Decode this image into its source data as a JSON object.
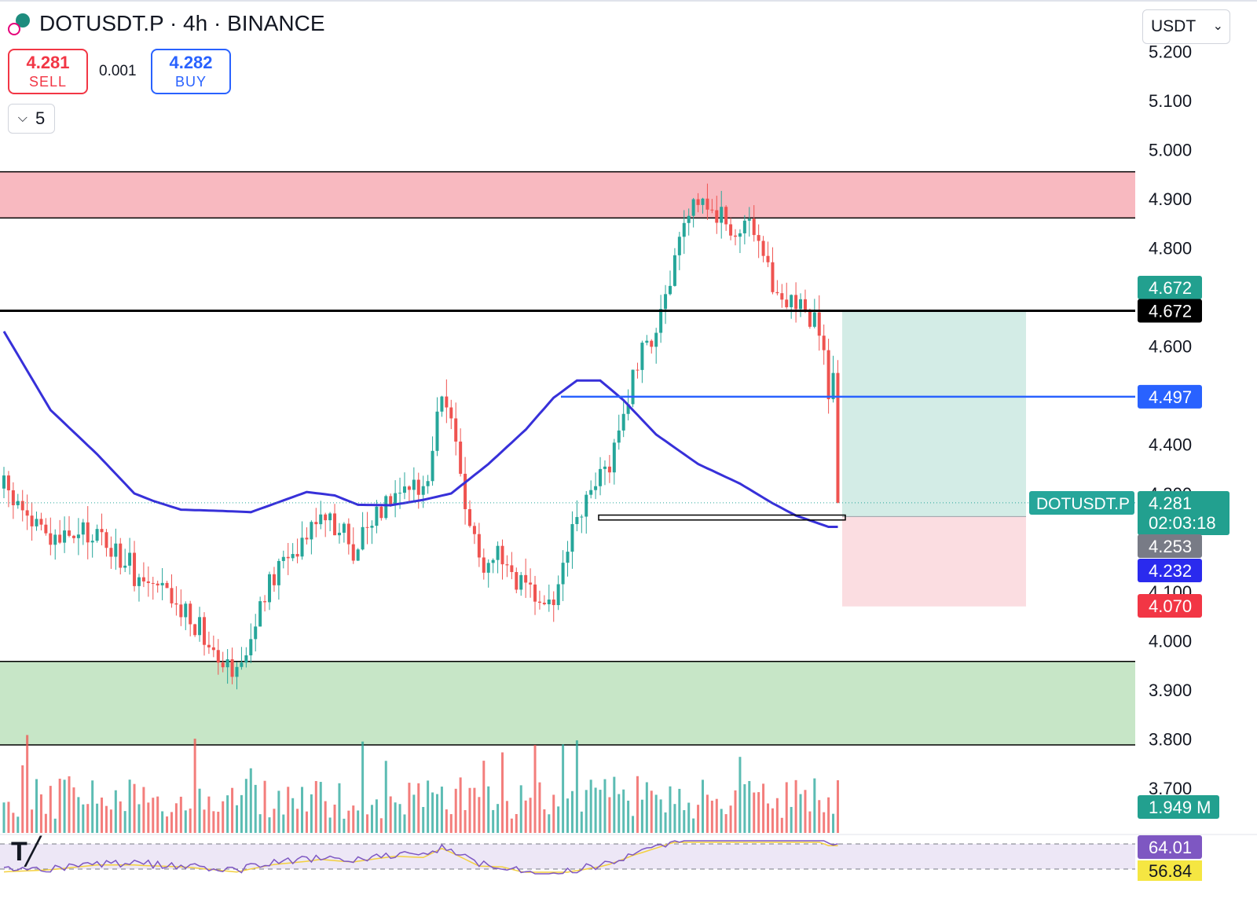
{
  "header": {
    "symbol_line": "DOTUSDT.P · 4h · BINANCE",
    "sell_price": "4.281",
    "sell_label": "SELL",
    "spread": "0.001",
    "buy_price": "4.282",
    "buy_label": "BUY",
    "quantity": "5",
    "currency": "USDT"
  },
  "colors": {
    "up": "#26a69a",
    "down": "#ef5350",
    "ma": "#3730d9",
    "resistance_zone": "#f8b9c0",
    "support_zone": "#c7e6c7",
    "target_zone": "#d3ece6",
    "stop_zone": "#fbdde1"
  },
  "chart_data": {
    "type": "candlestick",
    "symbol": "DOTUSDT.P",
    "interval": "4h",
    "exchange": "BINANCE",
    "y_axis": {
      "range": [
        3.66,
        5.23
      ],
      "ticks": [
        "5.200",
        "5.100",
        "5.000",
        "4.900",
        "4.800",
        "4.600",
        "4.400",
        "4.300",
        "4.100",
        "4.000",
        "3.900",
        "3.800",
        "3.700"
      ]
    },
    "candle_count": 180,
    "price_path": [
      [
        0,
        4.31
      ],
      [
        10,
        4.2
      ],
      [
        20,
        4.22
      ],
      [
        30,
        4.12
      ],
      [
        40,
        4.05
      ],
      [
        50,
        3.94
      ],
      [
        58,
        4.13
      ],
      [
        68,
        4.27
      ],
      [
        75,
        4.19
      ],
      [
        84,
        4.32
      ],
      [
        90,
        4.3
      ],
      [
        94,
        4.52
      ],
      [
        102,
        4.16
      ],
      [
        107,
        4.18
      ],
      [
        112,
        4.09
      ],
      [
        118,
        4.08
      ],
      [
        122,
        4.22
      ],
      [
        130,
        4.37
      ],
      [
        135,
        4.53
      ],
      [
        140,
        4.65
      ],
      [
        149,
        4.91
      ],
      [
        155,
        4.85
      ],
      [
        160,
        4.83
      ],
      [
        165,
        4.72
      ],
      [
        170,
        4.69
      ],
      [
        174,
        4.66
      ],
      [
        177,
        4.52
      ]
    ],
    "moving_average": [
      [
        0,
        4.63
      ],
      [
        5,
        4.55
      ],
      [
        10,
        4.47
      ],
      [
        20,
        4.38
      ],
      [
        28,
        4.3
      ],
      [
        32,
        4.285
      ],
      [
        38,
        4.267
      ],
      [
        45,
        4.265
      ],
      [
        53,
        4.262
      ],
      [
        58,
        4.279
      ],
      [
        65,
        4.303
      ],
      [
        71,
        4.296
      ],
      [
        76,
        4.277
      ],
      [
        83,
        4.276
      ],
      [
        90,
        4.287
      ],
      [
        96,
        4.3
      ],
      [
        104,
        4.36
      ],
      [
        112,
        4.43
      ],
      [
        118,
        4.495
      ],
      [
        123,
        4.53
      ],
      [
        128,
        4.53
      ],
      [
        133,
        4.49
      ],
      [
        140,
        4.42
      ],
      [
        149,
        4.36
      ],
      [
        158,
        4.32
      ],
      [
        165,
        4.28
      ],
      [
        170,
        4.255
      ],
      [
        177,
        4.232
      ]
    ],
    "zones": [
      {
        "kind": "resistance",
        "from": 4.861,
        "to": 4.955
      },
      {
        "kind": "support",
        "from": 3.788,
        "to": 3.958
      }
    ],
    "levels": [
      {
        "kind": "horizontal",
        "value": 4.672
      },
      {
        "kind": "ray",
        "value": 4.497
      },
      {
        "kind": "current",
        "value": 4.281
      },
      {
        "kind": "range-box",
        "from": 4.246,
        "to": 4.256
      }
    ],
    "position": {
      "type": "long",
      "entry": 4.253,
      "target": 4.672,
      "stop": 4.07
    },
    "price_labels": [
      {
        "value": 4.672,
        "text": "4.672",
        "color": "#22a08f"
      },
      {
        "value": 4.672,
        "text": "4.672",
        "color": "#000000"
      },
      {
        "value": 4.497,
        "text": "4.497",
        "color": "#2962ff"
      },
      {
        "value": 4.281,
        "text": "4.281",
        "color": "#22a08f"
      },
      {
        "value": 4.253,
        "text": "4.253",
        "color": "#787b86"
      },
      {
        "value": 4.232,
        "text": "4.232",
        "color": "#2a2aee"
      },
      {
        "value": 4.07,
        "text": "4.070",
        "color": "#f23645"
      }
    ],
    "current": {
      "symbol": "DOTUSDT.P",
      "price": "4.281",
      "countdown": "02:03:18"
    },
    "volume": {
      "last": "1.949 M"
    },
    "rsi": {
      "value": "64.01",
      "ma_value": "56.84"
    }
  }
}
